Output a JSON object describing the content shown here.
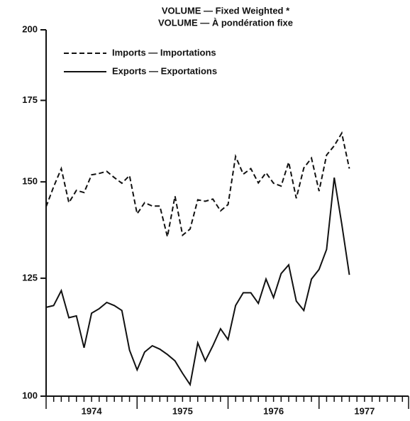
{
  "chart_data": {
    "type": "line",
    "title": "VOLUME — Fixed Weighted *",
    "subtitle": "VOLUME — À pondération fixe",
    "log_scale": true,
    "x": [
      1974.0,
      1974.083,
      1974.167,
      1974.25,
      1974.333,
      1974.417,
      1974.5,
      1974.583,
      1974.667,
      1974.75,
      1974.833,
      1974.917,
      1975.0,
      1975.083,
      1975.167,
      1975.25,
      1975.333,
      1975.417,
      1975.5,
      1975.583,
      1975.667,
      1975.75,
      1975.833,
      1975.917,
      1976.0,
      1976.083,
      1976.167,
      1976.25,
      1976.333,
      1976.417,
      1976.5,
      1976.583,
      1976.667,
      1976.75,
      1976.833,
      1976.917,
      1977.0,
      1977.083,
      1977.167,
      1977.25,
      1977.333
    ],
    "xlim": [
      1974,
      1978
    ],
    "xticks": [
      {
        "value": 1974.5,
        "label": "1974"
      },
      {
        "value": 1975.5,
        "label": "1975"
      },
      {
        "value": 1976.5,
        "label": "1976"
      },
      {
        "value": 1977.5,
        "label": "1977"
      }
    ],
    "ylim": [
      100,
      200
    ],
    "yticks": [
      100,
      125,
      150,
      175,
      200
    ],
    "series": [
      {
        "name": "Imports — Importations",
        "color": "#111111",
        "dash": "dashed",
        "values": [
          143.1,
          148.6,
          153.8,
          144.2,
          147.6,
          147.0,
          152.0,
          152.4,
          153.0,
          151.2,
          149.6,
          151.8,
          141.2,
          144.2,
          143.3,
          143.3,
          135.2,
          146.0,
          135.6,
          137.2,
          145.0,
          144.6,
          145.2,
          142.0,
          143.7,
          157.4,
          152.2,
          153.8,
          149.7,
          152.6,
          149.6,
          148.8,
          155.7,
          145.4,
          154.0,
          156.9,
          147.4,
          157.8,
          160.6,
          164.5,
          153.8
        ]
      },
      {
        "name": "Exports — Exportations",
        "color": "#111111",
        "dash": "solid",
        "values": [
          118.3,
          118.7,
          122.1,
          116.0,
          116.4,
          109.6,
          117.0,
          118.0,
          119.4,
          118.7,
          117.6,
          109.1,
          105.1,
          108.7,
          110.0,
          109.3,
          108.2,
          106.9,
          104.4,
          102.2,
          110.6,
          106.9,
          110.0,
          113.6,
          111.3,
          118.7,
          121.6,
          121.6,
          119.2,
          124.8,
          120.5,
          126.1,
          128.2,
          119.7,
          117.6,
          124.8,
          127.1,
          132.0,
          151.2,
          138.5,
          125.8
        ]
      }
    ]
  }
}
